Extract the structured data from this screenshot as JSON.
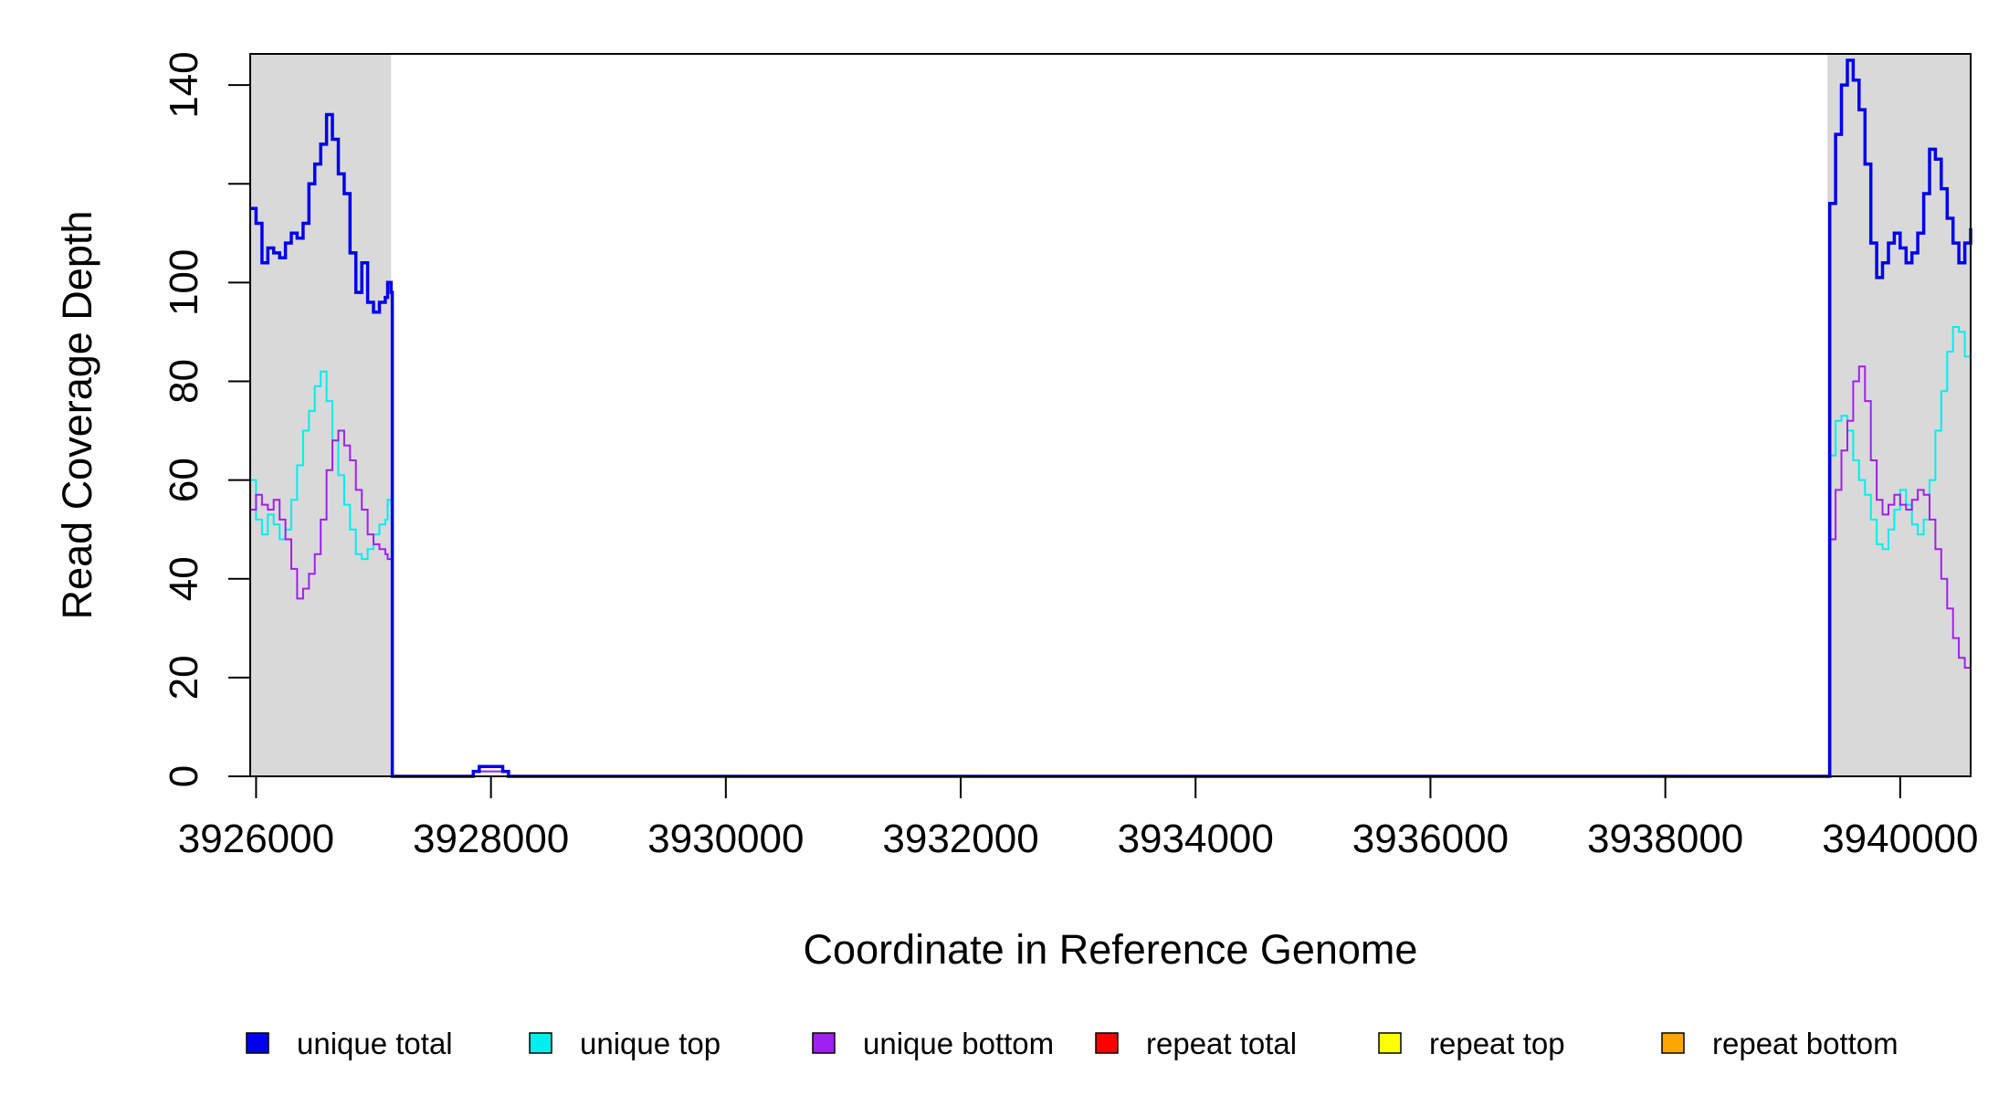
{
  "chart_data": {
    "type": "line",
    "title": "",
    "xlabel": "Coordinate in Reference Genome",
    "ylabel": "Read Coverage Depth",
    "xlim": [
      3925950,
      3940600
    ],
    "ylim": [
      0,
      150
    ],
    "x_ticks": [
      3926000,
      3928000,
      3930000,
      3932000,
      3934000,
      3936000,
      3938000,
      3940000
    ],
    "x_tick_labels": [
      "3926000",
      "3928000",
      "3930000",
      "3932000",
      "3934000",
      "3936000",
      "3938000",
      "3940000"
    ],
    "y_ticks": [
      0,
      20,
      40,
      60,
      80,
      100,
      120,
      140
    ],
    "y_tick_labels": [
      "0",
      "20",
      "40",
      "60",
      "80",
      "100",
      "",
      "140"
    ],
    "grid": false,
    "legend_position": "bottom",
    "shaded_regions": [
      {
        "x0": 3925950,
        "x1": 3927150,
        "color": "#d9d9d9"
      },
      {
        "x0": 3939380,
        "x1": 3940600,
        "color": "#d9d9d9"
      }
    ],
    "series": [
      {
        "name": "unique total",
        "color": "#0000ee",
        "x": [
          3925950,
          3926000,
          3926050,
          3926100,
          3926150,
          3926200,
          3926250,
          3926300,
          3926350,
          3926400,
          3926450,
          3926500,
          3926550,
          3926600,
          3926650,
          3926700,
          3926750,
          3926800,
          3926850,
          3926900,
          3926950,
          3927000,
          3927050,
          3927100,
          3927120,
          3927150,
          3927160,
          3927800,
          3927850,
          3927900,
          3928000,
          3928100,
          3928150,
          3928200,
          3939350,
          3939380,
          3939400,
          3939450,
          3939500,
          3939550,
          3939600,
          3939650,
          3939700,
          3939750,
          3939800,
          3939850,
          3939900,
          3939950,
          3940000,
          3940050,
          3940100,
          3940150,
          3940200,
          3940250,
          3940300,
          3940350,
          3940400,
          3940450,
          3940500,
          3940550,
          3940600
        ],
        "values": [
          115,
          112,
          104,
          107,
          106,
          105,
          108,
          110,
          109,
          112,
          120,
          124,
          128,
          134,
          129,
          122,
          118,
          106,
          98,
          104,
          96,
          94,
          96,
          97,
          100,
          98,
          0,
          0,
          1,
          2,
          2,
          1,
          0,
          0,
          0,
          0,
          116,
          130,
          140,
          145,
          141,
          135,
          124,
          108,
          101,
          104,
          108,
          110,
          107,
          104,
          106,
          110,
          118,
          127,
          125,
          119,
          113,
          108,
          104,
          108,
          111
        ]
      },
      {
        "name": "unique top",
        "color": "#00eeee",
        "x": [
          3925950,
          3926000,
          3926050,
          3926100,
          3926150,
          3926200,
          3926250,
          3926300,
          3926350,
          3926400,
          3926450,
          3926500,
          3926550,
          3926600,
          3926650,
          3926700,
          3926750,
          3926800,
          3926850,
          3926900,
          3926950,
          3927000,
          3927050,
          3927100,
          3927120,
          3927150,
          3927160,
          3927800,
          3927850,
          3927900,
          3928000,
          3928100,
          3928150,
          3928200,
          3939350,
          3939380,
          3939400,
          3939450,
          3939500,
          3939550,
          3939600,
          3939650,
          3939700,
          3939750,
          3939800,
          3939850,
          3939900,
          3939950,
          3940000,
          3940050,
          3940100,
          3940150,
          3940200,
          3940250,
          3940300,
          3940350,
          3940400,
          3940450,
          3940500,
          3940550,
          3940600
        ],
        "values": [
          60,
          52,
          49,
          53,
          51,
          48,
          50,
          56,
          63,
          70,
          74,
          79,
          82,
          76,
          68,
          61,
          55,
          50,
          45,
          44,
          46,
          49,
          51,
          52,
          56,
          55,
          0,
          0,
          1,
          1,
          1,
          1,
          0,
          0,
          0,
          0,
          65,
          72,
          73,
          70,
          64,
          60,
          57,
          52,
          47,
          46,
          50,
          54,
          58,
          55,
          51,
          49,
          52,
          60,
          70,
          78,
          86,
          91,
          90,
          85,
          80
        ]
      },
      {
        "name": "unique bottom",
        "color": "#a020f0",
        "x": [
          3925950,
          3926000,
          3926050,
          3926100,
          3926150,
          3926200,
          3926250,
          3926300,
          3926350,
          3926400,
          3926450,
          3926500,
          3926550,
          3926600,
          3926650,
          3926700,
          3926750,
          3926800,
          3926850,
          3926900,
          3926950,
          3927000,
          3927050,
          3927100,
          3927120,
          3927150,
          3927160,
          3927800,
          3927850,
          3927900,
          3928000,
          3928100,
          3928150,
          3928200,
          3939350,
          3939380,
          3939400,
          3939450,
          3939500,
          3939550,
          3939600,
          3939650,
          3939700,
          3939750,
          3939800,
          3939850,
          3939900,
          3939950,
          3940000,
          3940050,
          3940100,
          3940150,
          3940200,
          3940250,
          3940300,
          3940350,
          3940400,
          3940450,
          3940500,
          3940550,
          3940600
        ],
        "values": [
          54,
          57,
          55,
          54,
          56,
          52,
          48,
          42,
          36,
          38,
          41,
          45,
          52,
          62,
          68,
          70,
          67,
          64,
          58,
          54,
          49,
          47,
          46,
          45,
          44,
          44,
          0,
          0,
          1,
          1,
          1,
          1,
          0,
          0,
          0,
          0,
          48,
          58,
          66,
          72,
          80,
          83,
          76,
          64,
          56,
          53,
          55,
          57,
          55,
          54,
          56,
          58,
          57,
          52,
          46,
          40,
          34,
          28,
          24,
          22,
          24
        ]
      },
      {
        "name": "repeat total",
        "color": "#ff0000",
        "x": [
          3925950,
          3940600
        ],
        "values": [
          0,
          0
        ]
      },
      {
        "name": "repeat top",
        "color": "#ffff00",
        "x": [
          3925950,
          3940600
        ],
        "values": [
          0,
          0
        ]
      },
      {
        "name": "repeat bottom",
        "color": "#ffa500",
        "x": [
          3925950,
          3940600
        ],
        "values": [
          0,
          0
        ]
      }
    ]
  }
}
